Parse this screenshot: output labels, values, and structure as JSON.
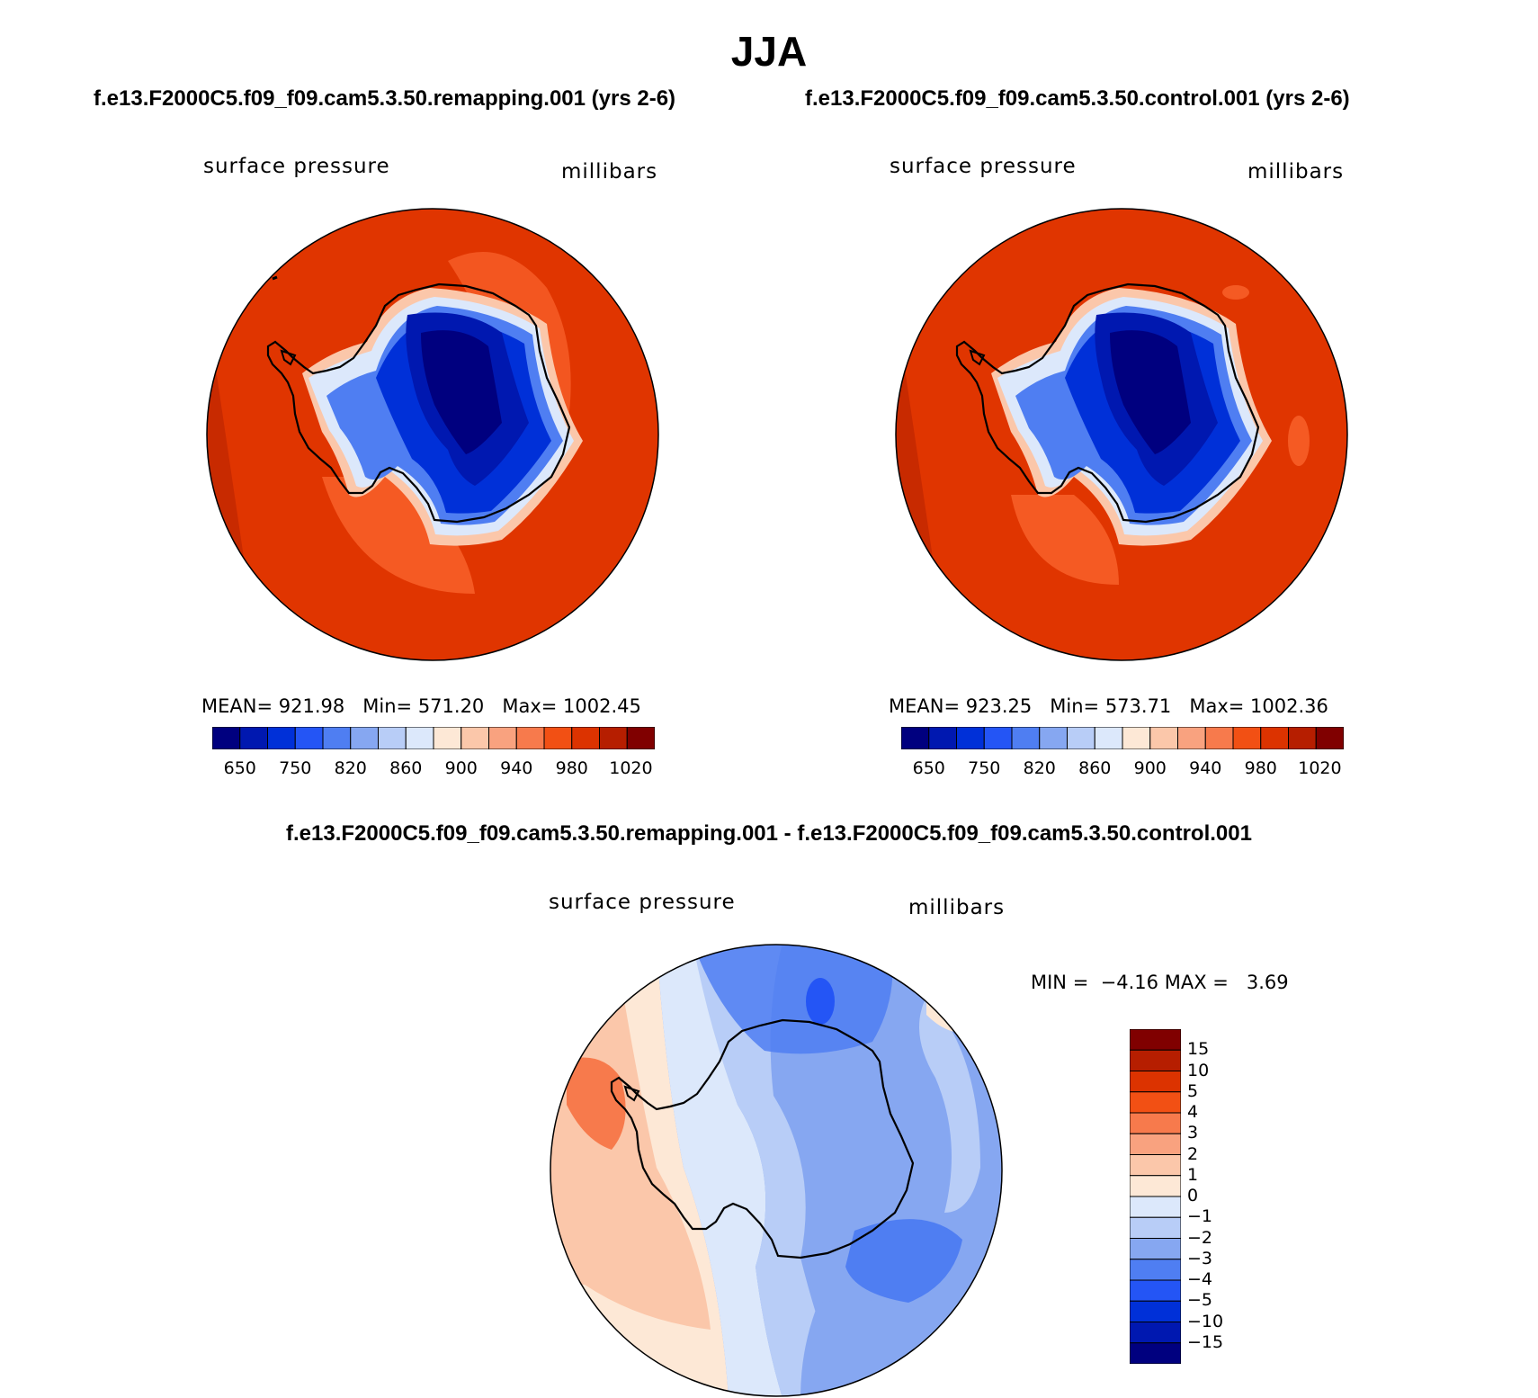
{
  "season_title": "JJA",
  "panels": [
    {
      "id": "remapping",
      "case_title": "f.e13.F2000C5.f09_f09.cam5.3.50.remapping.001 (yrs 2-6)",
      "variable": "surface pressure",
      "units": "millibars",
      "stats": {
        "mean_label": "MEAN=",
        "mean": "921.98",
        "min_label": "Min=",
        "min": "571.20",
        "max_label": "Max=",
        "max": "1002.45"
      }
    },
    {
      "id": "control",
      "case_title": "f.e13.F2000C5.f09_f09.cam5.3.50.control.001 (yrs 2-6)",
      "variable": "surface pressure",
      "units": "millibars",
      "stats": {
        "mean_label": "MEAN=",
        "mean": "923.25",
        "min_label": "Min=",
        "min": "573.71",
        "max_label": "Max=",
        "max": "1002.36"
      }
    }
  ],
  "abs_colorbar": {
    "colors": [
      "#00007f",
      "#0018b0",
      "#0030d8",
      "#2455f5",
      "#4f7ef2",
      "#86a7f1",
      "#b8cdf7",
      "#dce8fb",
      "#fde8d6",
      "#fbc7aa",
      "#f9a27f",
      "#f77a4c",
      "#f25014",
      "#dc3300",
      "#b61e00",
      "#800000"
    ],
    "tick_labels": [
      "650",
      "750",
      "820",
      "860",
      "900",
      "940",
      "980",
      "1020"
    ]
  },
  "difference": {
    "title": "f.e13.F2000C5.f09_f09.cam5.3.50.remapping.001 - f.e13.F2000C5.f09_f09.cam5.3.50.control.001",
    "variable": "surface pressure",
    "units": "millibars",
    "min_label": "MIN =",
    "min": "−4.16",
    "max_label": "MAX =",
    "max": "3.69",
    "colorbar": {
      "colors_top_to_bottom": [
        "#800000",
        "#b61e00",
        "#dc3300",
        "#f25014",
        "#f77a4c",
        "#f9a27f",
        "#fbc7aa",
        "#fde8d6",
        "#dce8fb",
        "#b8cdf7",
        "#86a7f1",
        "#4f7ef2",
        "#2455f5",
        "#0030d8",
        "#0018b0",
        "#00007f"
      ],
      "tick_labels": [
        "15",
        "10",
        "5",
        "4",
        "3",
        "2",
        "1",
        "0",
        "−1",
        "−2",
        "−3",
        "−4",
        "−5",
        "−10",
        "−15"
      ]
    }
  },
  "colors": {
    "ocean_high": "#e03500",
    "ocean_mid": "#f55a23",
    "coast_light": "#f9a27f",
    "ice_dark": "#00007f",
    "ice_mid": "#0030d8",
    "diff_neg": "#86a7f1",
    "diff_pos": "#f9a27f"
  }
}
